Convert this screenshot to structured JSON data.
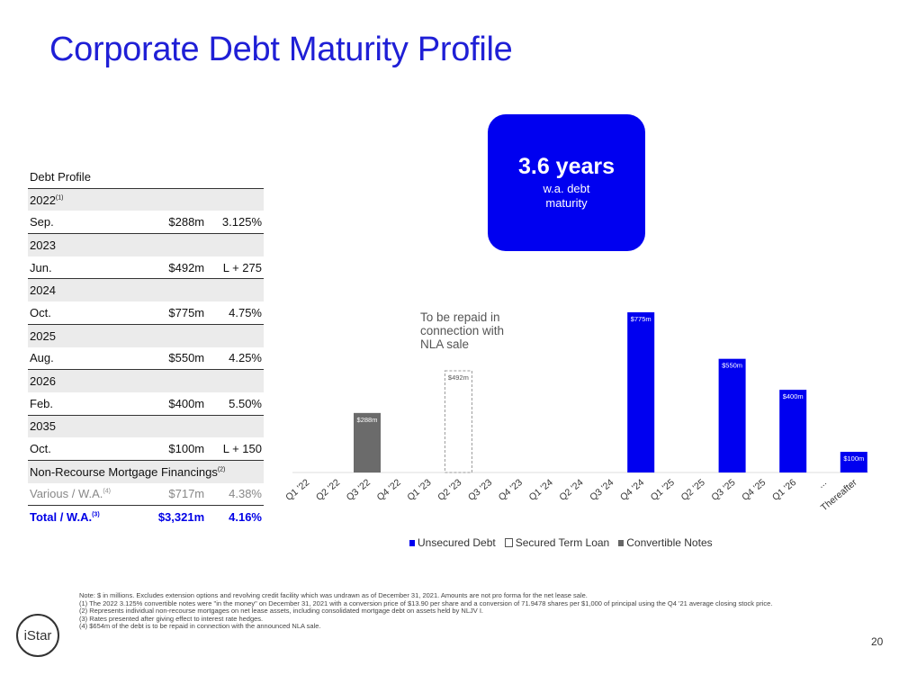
{
  "slide": {
    "title": "Corporate Debt Maturity Profile",
    "page_number": "20",
    "logo_text": "iStar"
  },
  "kpi": {
    "value": "3.6 years",
    "label": "w.a. debt maturity"
  },
  "debt_table": {
    "header": "Debt Profile",
    "header_year_2022": "2022",
    "header_year_2022_note": "(1)",
    "rows": [
      {
        "type": "year",
        "label": "2022",
        "note": "(1)"
      },
      {
        "type": "row",
        "month": "Sep.",
        "amount": "$288m",
        "rate": "3.125%"
      },
      {
        "type": "year",
        "label": "2023"
      },
      {
        "type": "row",
        "month": "Jun.",
        "amount": "$492m",
        "rate": "L + 275"
      },
      {
        "type": "year",
        "label": "2024"
      },
      {
        "type": "row",
        "month": "Oct.",
        "amount": "$775m",
        "rate": "4.75%"
      },
      {
        "type": "year",
        "label": "2025"
      },
      {
        "type": "row",
        "month": "Aug.",
        "amount": "$550m",
        "rate": "4.25%"
      },
      {
        "type": "year",
        "label": "2026"
      },
      {
        "type": "row",
        "month": "Feb.",
        "amount": "$400m",
        "rate": "5.50%"
      },
      {
        "type": "year",
        "label": "2035"
      },
      {
        "type": "row",
        "month": "Oct.",
        "amount": "$100m",
        "rate": "L + 150"
      }
    ],
    "nonrecourse": {
      "label": "Non-Recourse Mortgage Financings",
      "note": "(2)"
    },
    "various": {
      "label": "Various / W.A.",
      "note": "(4)",
      "amount": "$717m",
      "rate": "4.38%"
    },
    "total": {
      "label": "Total / W.A.",
      "note": "(3)",
      "amount": "$3,321m",
      "rate": "4.16%"
    }
  },
  "annotation": "To be repaid in connection with NLA sale",
  "legend": {
    "unsecured": "Unsecured Debt",
    "secured": "Secured Term Loan",
    "convertible": "Convertible Notes"
  },
  "colors": {
    "unsecured": "#0000f0",
    "convertible": "#6b6b6b",
    "secured_outline": "#999999",
    "title": "#1f1fd6"
  },
  "chart_data": {
    "type": "bar",
    "categories": [
      "Q1 '22",
      "Q2 '22",
      "Q3 '22",
      "Q4 '22",
      "Q1 '23",
      "Q2 '23",
      "Q3 '23",
      "Q4 '23",
      "Q1 '24",
      "Q2 '24",
      "Q3 '24",
      "Q4 '24",
      "Q1 '25",
      "Q2 '25",
      "Q3 '25",
      "Q4 '25",
      "Q1 '26",
      "...",
      "Thereafter"
    ],
    "series": [
      {
        "name": "Unsecured Debt",
        "values": [
          0,
          0,
          0,
          0,
          0,
          0,
          0,
          0,
          0,
          0,
          0,
          775,
          0,
          0,
          550,
          0,
          400,
          0,
          100
        ]
      },
      {
        "name": "Secured Term Loan",
        "values": [
          0,
          0,
          0,
          0,
          0,
          492,
          0,
          0,
          0,
          0,
          0,
          0,
          0,
          0,
          0,
          0,
          0,
          0,
          0
        ]
      },
      {
        "name": "Convertible Notes",
        "values": [
          0,
          0,
          288,
          0,
          0,
          0,
          0,
          0,
          0,
          0,
          0,
          0,
          0,
          0,
          0,
          0,
          0,
          0,
          0
        ]
      }
    ],
    "data_labels": [
      "",
      "",
      "$288m",
      "",
      "",
      "$492m",
      "",
      "",
      "",
      "",
      "",
      "$775m",
      "",
      "",
      "$550m",
      "",
      "$400m",
      "",
      "$100m"
    ],
    "ylim": [
      0,
      800
    ],
    "grid": false,
    "legend": "bottom"
  },
  "notes": [
    "Note: $ in millions. Excludes extension options and revolving credit facility which was undrawn as of December 31, 2021. Amounts are not pro forma for the net lease sale.",
    "(1) The 2022 3.125% convertible notes were \"in the money\" on December 31, 2021 with a conversion price of $13.90 per share and a conversion of 71.9478 shares per $1,000 of principal using the Q4 '21 average closing stock price.",
    "(2) Represents individual non-recourse mortgages on net lease assets, including consolidated mortgage debt on assets held by NLJV I.",
    "(3) Rates presented after giving effect to interest rate hedges.",
    "(4) $654m of the debt is to be repaid in connection with the announced NLA sale."
  ]
}
